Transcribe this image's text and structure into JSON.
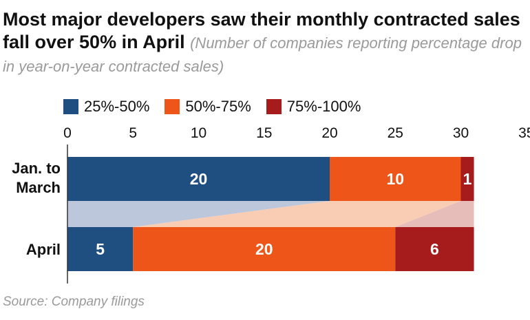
{
  "title": "Most major developers saw their monthly contracted sales fall over 50% in April",
  "subtitle": "(Number of companies reporting percentage drop in year-on-year contracted sales)",
  "source": "Source: Company filings",
  "colors": {
    "25%-50%": "#1f4e80",
    "50%-75%": "#ee5619",
    "75%-100%": "#a61b1b",
    "connector_blue": "#b2bdd6",
    "connector_orange": "#f7c4a6",
    "connector_red": "#e3b1ad"
  },
  "chart_data": {
    "type": "bar",
    "orientation": "horizontal",
    "stacked": true,
    "categories": [
      "Jan. to March",
      "April"
    ],
    "series": [
      {
        "name": "25%-50%",
        "values": [
          20,
          5
        ]
      },
      {
        "name": "50%-75%",
        "values": [
          10,
          20
        ]
      },
      {
        "name": "75%-100%",
        "values": [
          1,
          6
        ]
      }
    ],
    "x_ticks": [
      0,
      5,
      10,
      15,
      20,
      25,
      30,
      35
    ],
    "xlim": [
      0,
      35
    ],
    "axis_position": "top",
    "legend_position": "top-left",
    "grid": false,
    "data_labels": true
  }
}
